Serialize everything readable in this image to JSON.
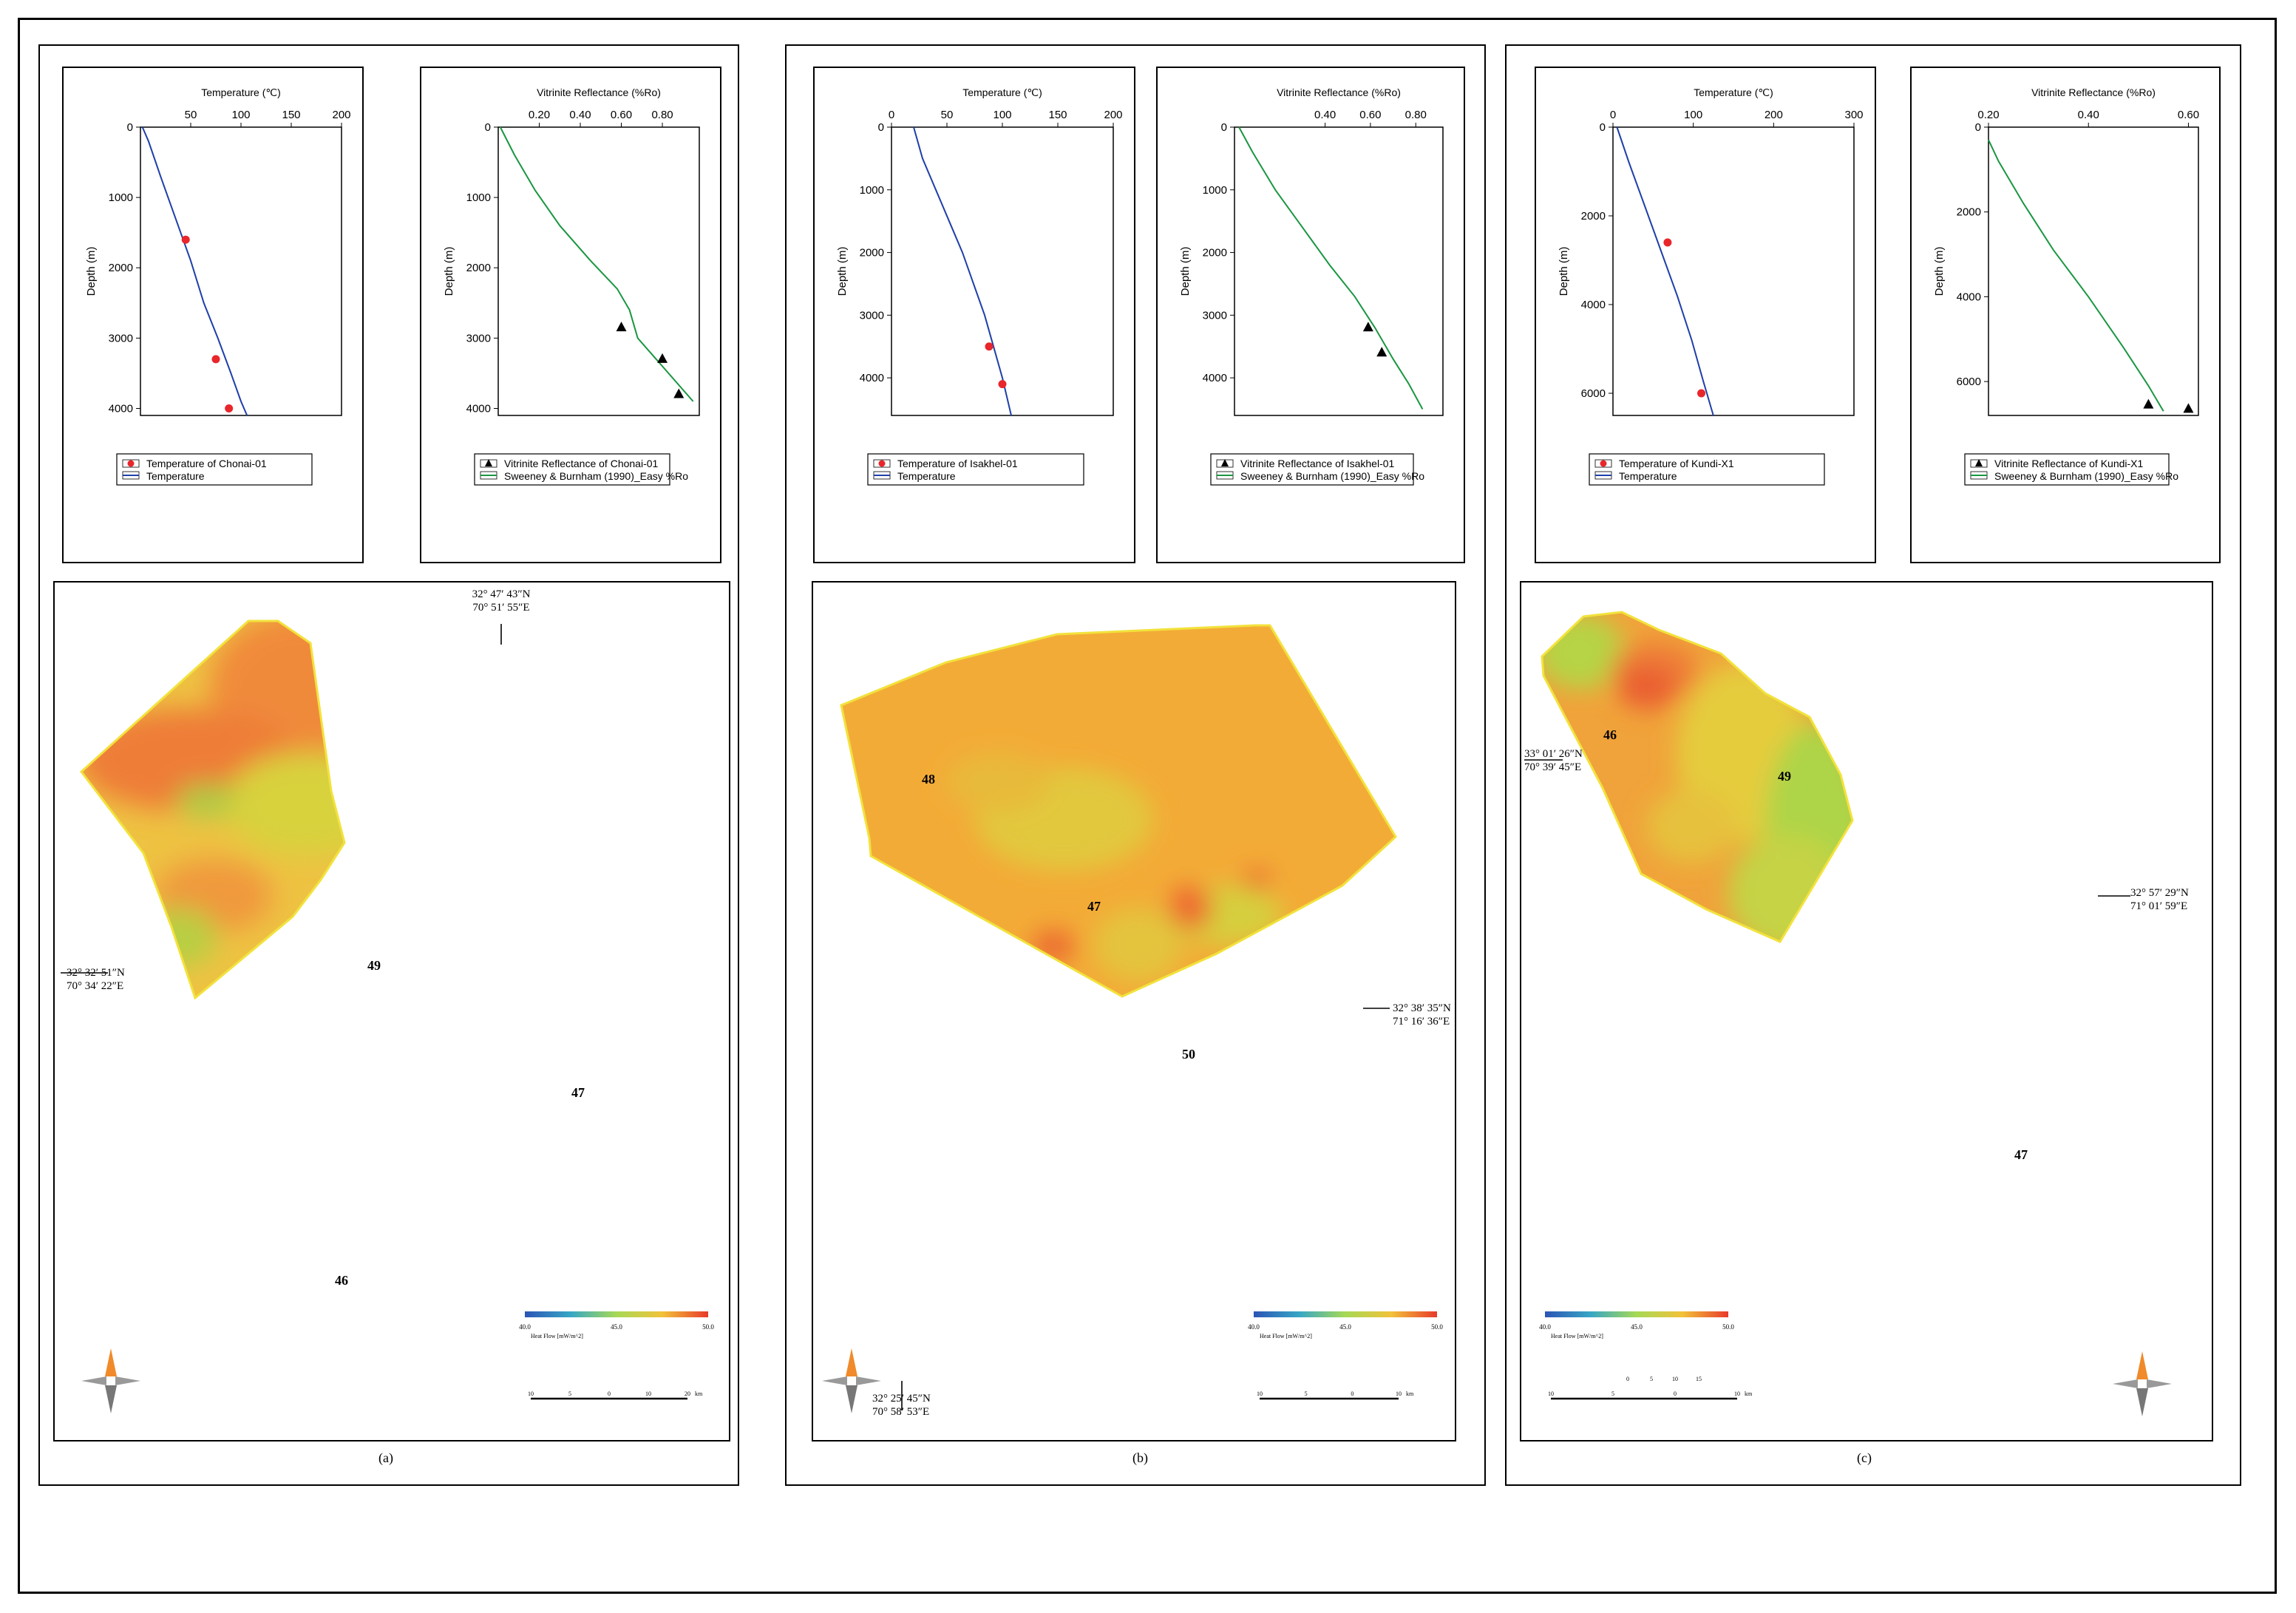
{
  "colors": {
    "temperature_line": "#1f3fa8",
    "vr_line": "#1a9641",
    "observed_temp": "#e8262b",
    "observed_vr": "#000000",
    "hf_low": "#2c54b5",
    "hf_mid": "#a6d955",
    "hf_high": "#e83a2a",
    "map_orange": "#f4a53a",
    "map_yellow": "#e3cd3d",
    "map_green": "#b6d447",
    "map_red": "#ec5a32"
  },
  "panels": [
    {
      "caption": "(a)",
      "temp_chart": {
        "type": "line",
        "xlabel": "Temperature (℃)",
        "ylabel": "Depth (m)",
        "xlim": [
          0,
          200
        ],
        "ylim": [
          0,
          4100
        ],
        "x_tick_values": [
          50,
          100,
          150,
          200
        ],
        "x_tick_labels": [
          "50",
          "100",
          "150",
          "200"
        ],
        "y_tick_values": [
          0,
          1000,
          2000,
          3000,
          4000
        ],
        "y_tick_labels": [
          "0",
          "1000",
          "2000",
          "3000",
          "4000"
        ],
        "series": [
          {
            "name": "Temperature",
            "x": [
              2,
              8,
              20,
              35,
              50,
              63,
              77,
              90,
              100,
              106
            ],
            "y": [
              0,
              200,
              700,
              1300,
              1900,
              2500,
              3000,
              3500,
              3900,
              4100
            ]
          }
        ],
        "observed": {
          "name": "Temperature of Chonai-01",
          "x": [
            45,
            75,
            88
          ],
          "y": [
            1600,
            3300,
            4000
          ]
        },
        "legend": [
          "Temperature of Chonai-01",
          "Temperature"
        ]
      },
      "vr_chart": {
        "type": "line",
        "xlabel": "Vitrinite Reflectance (%Ro)",
        "ylabel": "Depth (m)",
        "xlim": [
          0.0,
          0.98
        ],
        "ylim": [
          0,
          4100
        ],
        "x_tick_values": [
          0.2,
          0.4,
          0.6,
          0.8
        ],
        "x_tick_labels": [
          "0.20",
          "0.40",
          "0.60",
          "0.80"
        ],
        "y_tick_values": [
          0,
          1000,
          2000,
          3000,
          4000
        ],
        "y_tick_labels": [
          "0",
          "1000",
          "2000",
          "3000",
          "4000"
        ],
        "series": [
          {
            "name": "Sweeney & Burnham (1990)_Easy %Ro",
            "x": [
              0.01,
              0.08,
              0.18,
              0.3,
              0.45,
              0.58,
              0.64,
              0.68,
              0.8,
              0.95
            ],
            "y": [
              0,
              400,
              900,
              1400,
              1900,
              2300,
              2600,
              3000,
              3400,
              3900
            ]
          }
        ],
        "observed": {
          "name": "Vitrinite Reflectance of Chonai-01",
          "x": [
            0.6,
            0.8,
            0.88
          ],
          "y": [
            2850,
            3300,
            3800
          ]
        },
        "legend": [
          "Vitrinite Reflectance of Chonai-01",
          "Sweeney & Burnham (1990)_Easy %Ro"
        ]
      },
      "map": {
        "labels": [
          "49",
          "47",
          "46"
        ],
        "coordinates": [
          {
            "lat": "32° 47′ 43″N",
            "lon": "70° 51′ 55″E"
          },
          {
            "lat": "32° 32′ 51″N",
            "lon": "70° 34′ 22″E"
          }
        ],
        "colorbar": {
          "min": "40.0",
          "mid": "45.0",
          "max": "50.0",
          "label": "Heat Flow [mW/m^2]"
        },
        "scalebar": [
          "10",
          "5",
          "0",
          "10",
          "20",
          "km"
        ]
      }
    },
    {
      "caption": "(b)",
      "temp_chart": {
        "type": "line",
        "xlabel": "Temperature (℃)",
        "ylabel": "Depth (m)",
        "xlim": [
          0,
          200
        ],
        "ylim": [
          0,
          4600
        ],
        "x_tick_values": [
          0,
          50,
          100,
          150,
          200
        ],
        "x_tick_labels": [
          "0",
          "50",
          "100",
          "150",
          "200"
        ],
        "y_tick_values": [
          0,
          1000,
          2000,
          3000,
          4000
        ],
        "y_tick_labels": [
          "0",
          "1000",
          "2000",
          "3000",
          "4000"
        ],
        "series": [
          {
            "name": "Temperature",
            "x": [
              20,
              28,
              40,
              52,
              64,
              74,
              84,
              92,
              100,
              108
            ],
            "y": [
              0,
              500,
              1000,
              1500,
              2000,
              2500,
              3000,
              3500,
              4000,
              4600
            ]
          }
        ],
        "observed": {
          "name": "Temperature of Isakhel-01",
          "x": [
            88,
            100
          ],
          "y": [
            3500,
            4100
          ]
        },
        "legend": [
          "Temperature of Isakhel-01",
          "Temperature"
        ]
      },
      "vr_chart": {
        "type": "line",
        "xlabel": "Vitrinite Reflectance (%Ro)",
        "ylabel": "Depth (m)",
        "xlim": [
          0.0,
          0.92
        ],
        "ylim": [
          0,
          4600
        ],
        "x_tick_values": [
          0.4,
          0.6,
          0.8
        ],
        "x_tick_labels": [
          "0.40",
          "0.60",
          "0.80"
        ],
        "y_tick_values": [
          0,
          1000,
          2000,
          3000,
          4000
        ],
        "y_tick_labels": [
          "0",
          "1000",
          "2000",
          "3000",
          "4000"
        ],
        "series": [
          {
            "name": "Sweeney & Burnham (1990)_Easy %Ro",
            "x": [
              0.02,
              0.08,
              0.18,
              0.3,
              0.42,
              0.53,
              0.62,
              0.7,
              0.77,
              0.83
            ],
            "y": [
              0,
              400,
              1000,
              1600,
              2200,
              2700,
              3200,
              3700,
              4100,
              4500
            ]
          }
        ],
        "observed": {
          "name": "Vitrinite Reflectance of Isakhel-01",
          "x": [
            0.59,
            0.65
          ],
          "y": [
            3200,
            3600
          ]
        },
        "legend": [
          "Vitrinite Reflectance of Isakhel-01",
          "Sweeney & Burnham (1990)_Easy %Ro"
        ]
      },
      "map": {
        "labels": [
          "48",
          "47",
          "50"
        ],
        "coordinates": [
          {
            "lat": "32° 38′ 35″N",
            "lon": "71° 16′ 36″E"
          },
          {
            "lat": "32° 25′ 45″N",
            "lon": "70° 58′ 53″E"
          }
        ],
        "colorbar": {
          "min": "40.0",
          "mid": "45.0",
          "max": "50.0",
          "label": "Heat Flow [mW/m^2]"
        },
        "scalebar": [
          "10",
          "5",
          "0",
          "10",
          "km"
        ]
      }
    },
    {
      "caption": "(c)",
      "temp_chart": {
        "type": "line",
        "xlabel": "Temperature (℃)",
        "ylabel": "Depth (m)",
        "xlim": [
          0,
          300
        ],
        "ylim": [
          0,
          6500
        ],
        "x_tick_values": [
          0,
          100,
          200,
          300
        ],
        "x_tick_labels": [
          "0",
          "100",
          "200",
          "300"
        ],
        "y_tick_values": [
          0,
          2000,
          4000,
          6000
        ],
        "y_tick_labels": [
          "0",
          "2000",
          "4000",
          "6000"
        ],
        "series": [
          {
            "name": "Temperature",
            "x": [
              5,
              20,
              40,
              60,
              80,
              98,
              112,
              125
            ],
            "y": [
              0,
              800,
              1800,
              2800,
              3800,
              4800,
              5700,
              6500
            ]
          }
        ],
        "observed": {
          "name": "Temperature of Kundi-X1",
          "x": [
            68,
            110
          ],
          "y": [
            2600,
            6000
          ]
        },
        "legend": [
          "Temperature of Kundi-X1",
          "Temperature"
        ]
      },
      "vr_chart": {
        "type": "line",
        "xlabel": "Vitrinite Reflectance (%Ro)",
        "ylabel": "Depth (m)",
        "xlim": [
          0.2,
          0.62
        ],
        "ylim": [
          0,
          6800
        ],
        "x_tick_values": [
          0.2,
          0.4,
          0.6
        ],
        "x_tick_labels": [
          "0.20",
          "0.40",
          "0.60"
        ],
        "y_tick_values": [
          0,
          2000,
          4000,
          6000
        ],
        "y_tick_labels": [
          "0",
          "2000",
          "4000",
          "6000"
        ],
        "series": [
          {
            "name": "Sweeney & Burnham (1990)_Easy %Ro",
            "x": [
              0.2,
              0.22,
              0.27,
              0.33,
              0.4,
              0.47,
              0.52,
              0.55
            ],
            "y": [
              300,
              800,
              1800,
              2900,
              4000,
              5200,
              6100,
              6700
            ]
          }
        ],
        "observed": {
          "name": "Vitrinite Reflectance of Kundi-X1",
          "x": [
            0.52,
            0.6
          ],
          "y": [
            6550,
            6650
          ]
        },
        "legend": [
          "Vitrinite Reflectance of Kundi-X1",
          "Sweeney & Burnham (1990)_Easy %Ro"
        ]
      },
      "map": {
        "labels": [
          "46",
          "49",
          "47"
        ],
        "coordinates": [
          {
            "lat": "33° 01′ 26″N",
            "lon": "70° 39′ 45″E"
          },
          {
            "lat": "32° 57′ 29″N",
            "lon": "71° 01′ 59″E"
          }
        ],
        "colorbar": {
          "min": "40.0",
          "mid": "45.0",
          "max": "50.0",
          "label": "Heat Flow [mW/m^2]"
        },
        "scalebar": [
          "10",
          "5",
          "0",
          "10",
          "km"
        ],
        "scalebar_top": [
          "0",
          "5",
          "10",
          "15"
        ]
      }
    }
  ]
}
